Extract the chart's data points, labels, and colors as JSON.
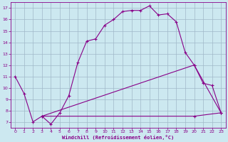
{
  "xlabel": "Windchill (Refroidissement éolien,°C)",
  "bg_color": "#cce8f0",
  "line_color": "#880088",
  "grid_color": "#a0b8c8",
  "xlim": [
    -0.5,
    23.5
  ],
  "ylim": [
    6.5,
    17.5
  ],
  "xticks": [
    0,
    1,
    2,
    3,
    4,
    5,
    6,
    7,
    8,
    9,
    10,
    11,
    12,
    13,
    14,
    15,
    16,
    17,
    18,
    19,
    20,
    21,
    22,
    23
  ],
  "yticks": [
    7,
    8,
    9,
    10,
    11,
    12,
    13,
    14,
    15,
    16,
    17
  ],
  "curve1_x": [
    0,
    1,
    2,
    3,
    4,
    5,
    6,
    7,
    8,
    9,
    10,
    11,
    12,
    13,
    14,
    15,
    16,
    17,
    18,
    19,
    20,
    21,
    22,
    23
  ],
  "curve1_y": [
    11.0,
    9.5,
    7.0,
    7.5,
    6.8,
    7.8,
    9.3,
    12.2,
    14.1,
    14.3,
    15.5,
    16.0,
    16.7,
    16.8,
    16.8,
    17.2,
    16.4,
    16.5,
    15.8,
    13.1,
    12.0,
    10.4,
    10.2,
    7.8
  ],
  "curve2_x": [
    3,
    20,
    23
  ],
  "curve2_y": [
    7.5,
    7.5,
    7.8
  ],
  "curve3_x": [
    3,
    20,
    23
  ],
  "curve3_y": [
    7.5,
    12.0,
    7.8
  ]
}
